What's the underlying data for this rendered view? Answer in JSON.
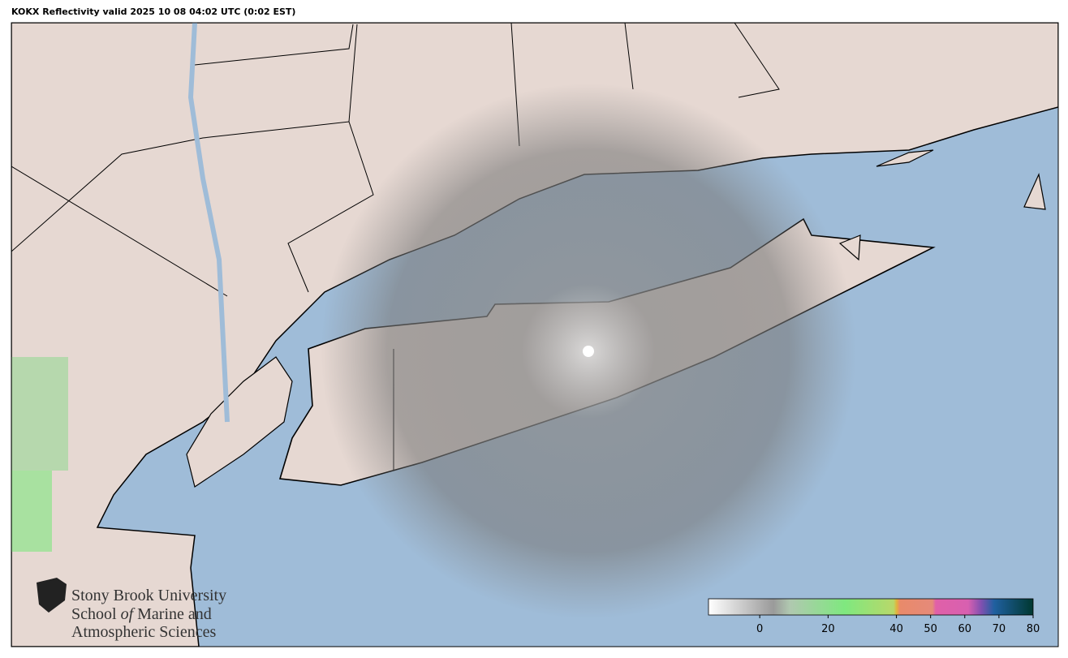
{
  "title": "KOKX Reflectivity valid 2025 10 08 04:02 UTC (0:02 EST)",
  "logo": {
    "line1": "Stony Brook University",
    "line2": [
      "School",
      "of",
      "Marine and"
    ],
    "line3": "Atmospheric Sciences"
  },
  "colorbar": {
    "lim": [
      -15,
      80
    ],
    "ticks": [
      0,
      20,
      40,
      50,
      60,
      70,
      80
    ]
  }
}
